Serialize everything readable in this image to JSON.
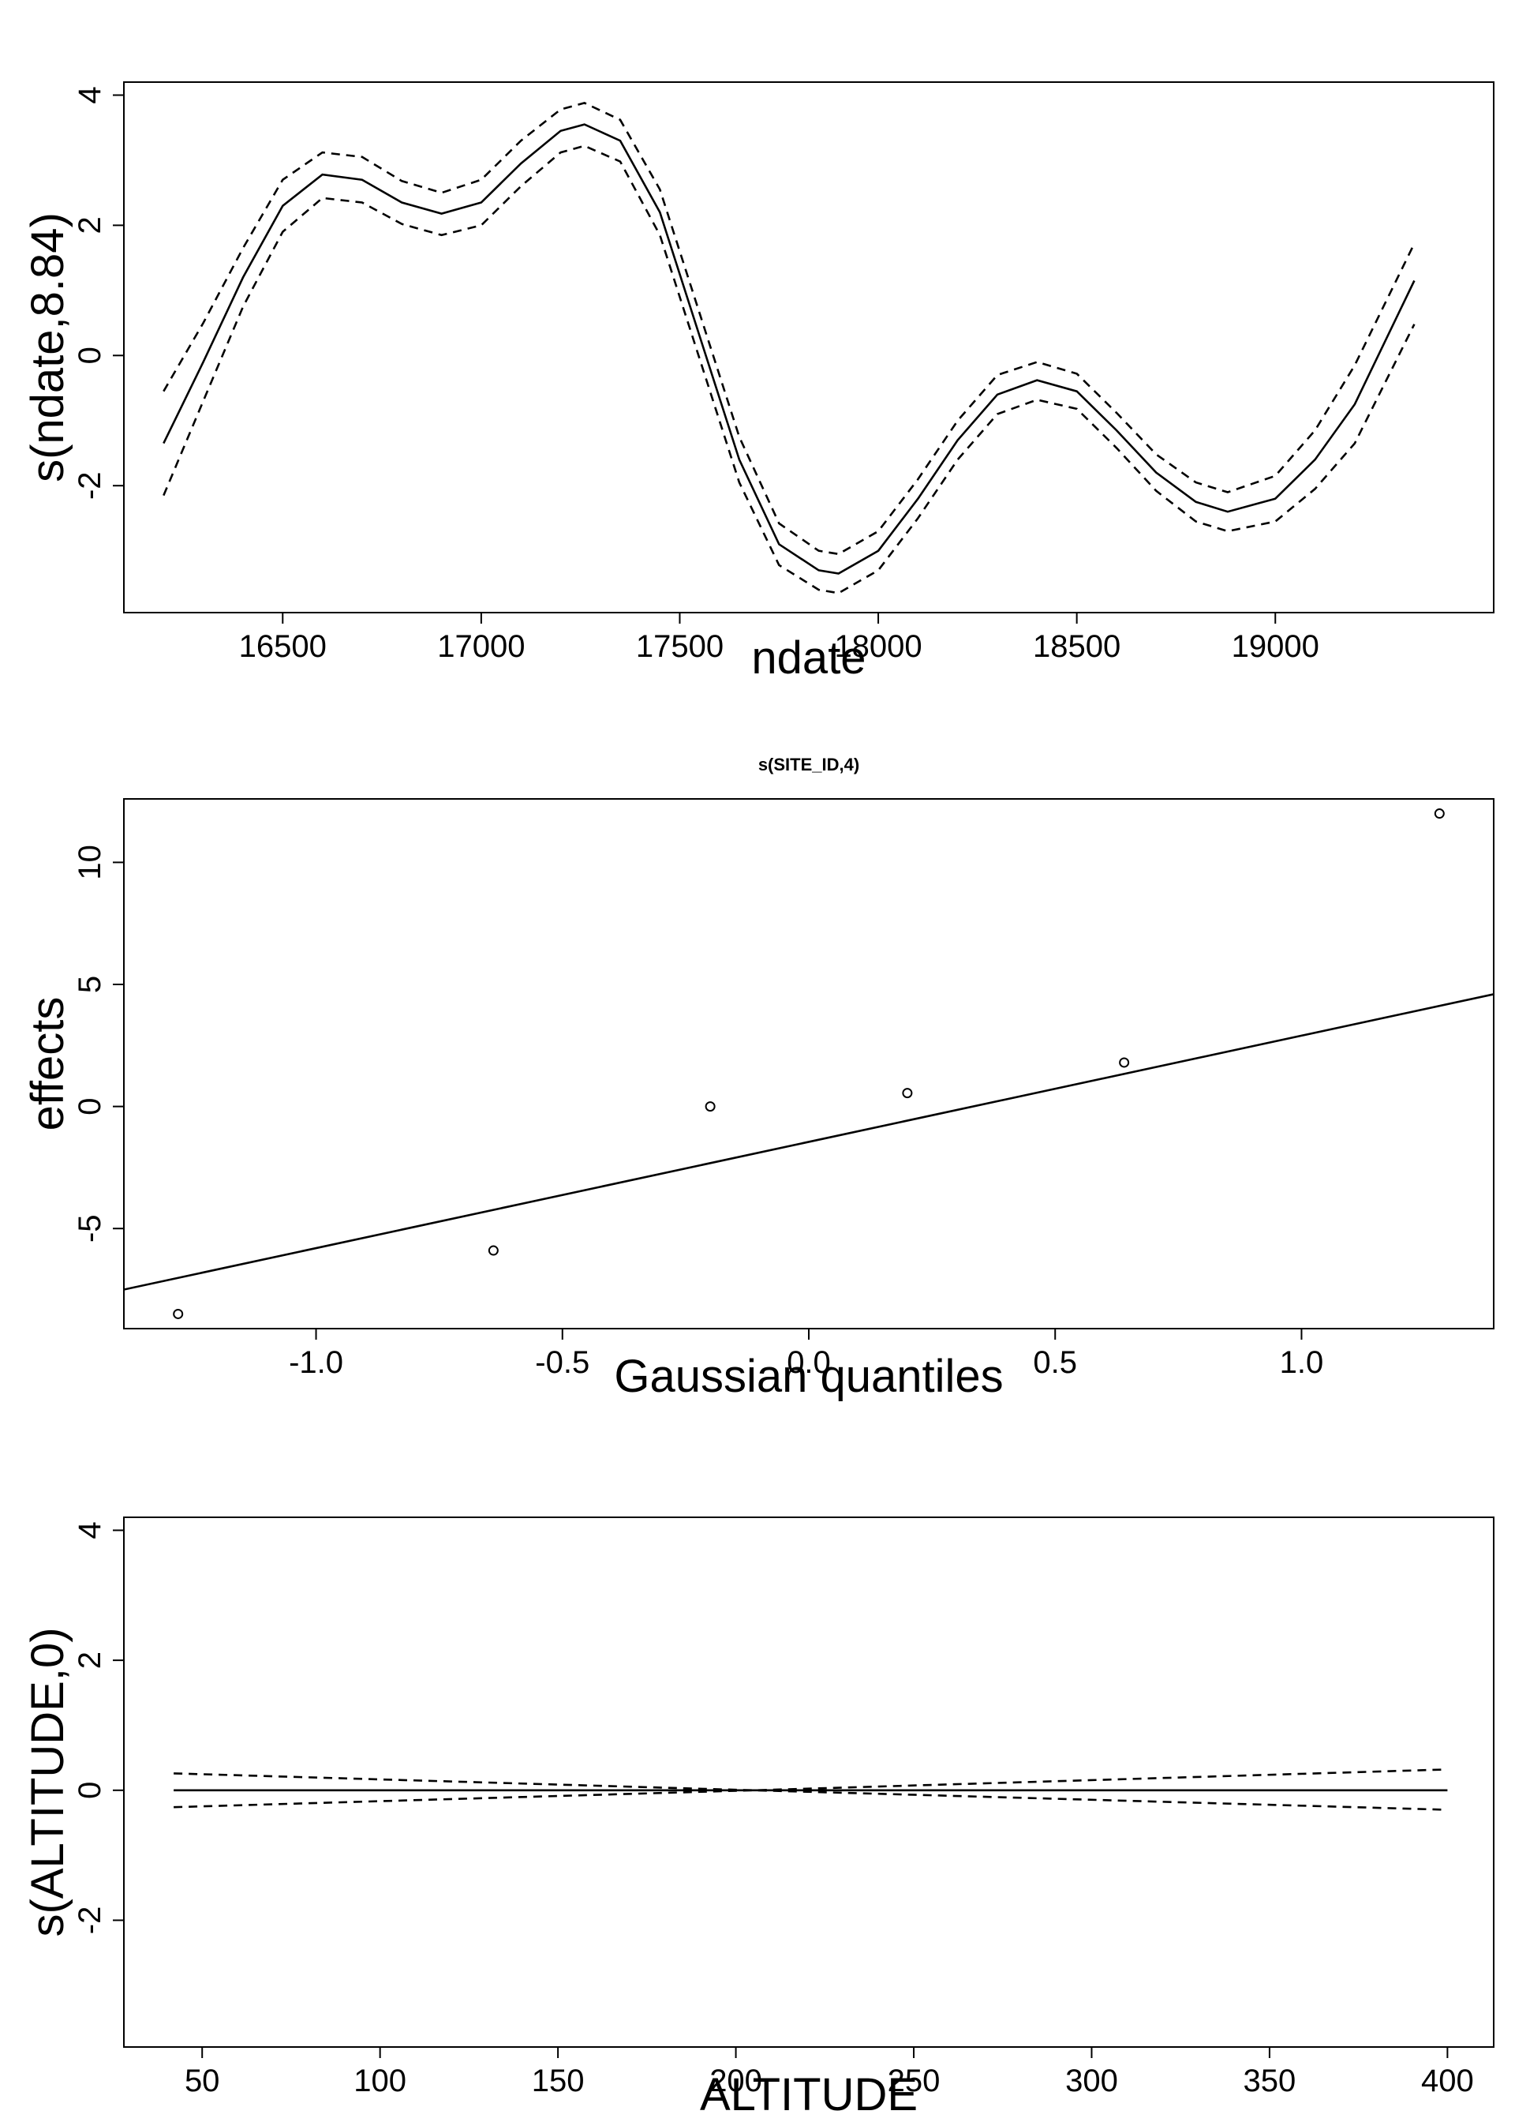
{
  "chart_data": [
    {
      "type": "line",
      "title": "",
      "xlabel": "ndate",
      "ylabel": "s(ndate,8.84)",
      "xlim": [
        16100,
        19550
      ],
      "ylim": [
        -3.95,
        4.2
      ],
      "xticks": [
        16500,
        17000,
        17500,
        18000,
        18500,
        19000
      ],
      "xticklabels": [
        "16500",
        "17000",
        "17500",
        "18000",
        "18500",
        "19000"
      ],
      "yticks": [
        -2,
        0,
        2,
        4
      ],
      "yticklabels": [
        "-2",
        "0",
        "2",
        "4"
      ],
      "grid": false,
      "series": [
        {
          "role": "fit",
          "style": "solid",
          "x": [
            16200,
            16300,
            16400,
            16500,
            16600,
            16700,
            16800,
            16900,
            17000,
            17100,
            17200,
            17260,
            17350,
            17450,
            17550,
            17650,
            17750,
            17850,
            17900,
            18000,
            18100,
            18200,
            18300,
            18400,
            18500,
            18600,
            18700,
            18800,
            18880,
            19000,
            19100,
            19200,
            19350
          ],
          "y": [
            -1.35,
            -0.1,
            1.2,
            2.3,
            2.78,
            2.7,
            2.35,
            2.18,
            2.35,
            2.95,
            3.45,
            3.55,
            3.3,
            2.2,
            0.3,
            -1.6,
            -2.9,
            -3.3,
            -3.35,
            -3.0,
            -2.2,
            -1.3,
            -0.6,
            -0.38,
            -0.55,
            -1.15,
            -1.8,
            -2.25,
            -2.4,
            -2.2,
            -1.6,
            -0.75,
            1.15
          ]
        },
        {
          "role": "upper",
          "style": "dashed",
          "x": [
            16200,
            16300,
            16400,
            16500,
            16600,
            16700,
            16800,
            16900,
            17000,
            17100,
            17200,
            17260,
            17350,
            17450,
            17550,
            17650,
            17750,
            17850,
            17900,
            18000,
            18100,
            18200,
            18300,
            18400,
            18500,
            18600,
            18700,
            18800,
            18880,
            19000,
            19100,
            19200,
            19350
          ],
          "y": [
            -0.55,
            0.5,
            1.65,
            2.7,
            3.12,
            3.05,
            2.68,
            2.5,
            2.7,
            3.3,
            3.78,
            3.88,
            3.62,
            2.55,
            0.65,
            -1.25,
            -2.58,
            -3.0,
            -3.05,
            -2.7,
            -1.9,
            -1.0,
            -0.3,
            -0.1,
            -0.28,
            -0.88,
            -1.52,
            -1.95,
            -2.1,
            -1.85,
            -1.15,
            -0.15,
            1.72
          ]
        },
        {
          "role": "lower",
          "style": "dashed",
          "x": [
            16200,
            16300,
            16400,
            16500,
            16600,
            16700,
            16800,
            16900,
            17000,
            17100,
            17200,
            17260,
            17350,
            17450,
            17550,
            17650,
            17750,
            17850,
            17900,
            18000,
            18100,
            18200,
            18300,
            18400,
            18500,
            18600,
            18700,
            18800,
            18880,
            19000,
            19100,
            19200,
            19350
          ],
          "y": [
            -2.15,
            -0.7,
            0.75,
            1.9,
            2.42,
            2.35,
            2.02,
            1.85,
            2.0,
            2.6,
            3.12,
            3.22,
            2.98,
            1.85,
            -0.05,
            -1.95,
            -3.22,
            -3.6,
            -3.65,
            -3.3,
            -2.5,
            -1.6,
            -0.9,
            -0.68,
            -0.82,
            -1.42,
            -2.08,
            -2.55,
            -2.7,
            -2.55,
            -2.05,
            -1.35,
            0.48
          ]
        }
      ]
    },
    {
      "type": "scatter",
      "title": "s(SITE_ID,4)",
      "xlabel": "Gaussian quantiles",
      "ylabel": "effects",
      "xlim": [
        -1.39,
        1.39
      ],
      "ylim": [
        -9.1,
        12.6
      ],
      "xticks": [
        -1.0,
        -0.5,
        0.0,
        0.5,
        1.0
      ],
      "xticklabels": [
        "-1.0",
        "-0.5",
        "0.0",
        "0.5",
        "1.0"
      ],
      "yticks": [
        -5,
        0,
        5,
        10
      ],
      "yticklabels": [
        "-5",
        "0",
        "5",
        "10"
      ],
      "grid": false,
      "points": {
        "x": [
          -1.28,
          -0.64,
          -0.2,
          0.2,
          0.64,
          1.28
        ],
        "y": [
          -8.5,
          -5.9,
          0.0,
          0.55,
          1.8,
          12.0
        ]
      },
      "reference_line": {
        "x": [
          -1.39,
          1.39
        ],
        "y": [
          -7.5,
          4.6
        ]
      }
    },
    {
      "type": "line",
      "title": "",
      "xlabel": "ALTITUDE",
      "ylabel": "s(ALTITUDE,0)",
      "xlim": [
        28,
        413
      ],
      "ylim": [
        -3.95,
        4.2
      ],
      "xticks": [
        50,
        100,
        150,
        200,
        250,
        300,
        350,
        400
      ],
      "xticklabels": [
        "50",
        "100",
        "150",
        "200",
        "250",
        "300",
        "350",
        "400"
      ],
      "yticks": [
        -2,
        0,
        2,
        4
      ],
      "yticklabels": [
        "-2",
        "0",
        "2",
        "4"
      ],
      "grid": false,
      "series": [
        {
          "role": "fit",
          "style": "solid",
          "x": [
            42,
            400
          ],
          "y": [
            0.0,
            0.0
          ]
        },
        {
          "role": "upper",
          "style": "dashed",
          "x": [
            42,
            205,
            400
          ],
          "y": [
            0.26,
            0.0,
            0.32
          ]
        },
        {
          "role": "lower",
          "style": "dashed",
          "x": [
            42,
            205,
            400
          ],
          "y": [
            -0.26,
            0.0,
            -0.3
          ]
        }
      ]
    }
  ]
}
